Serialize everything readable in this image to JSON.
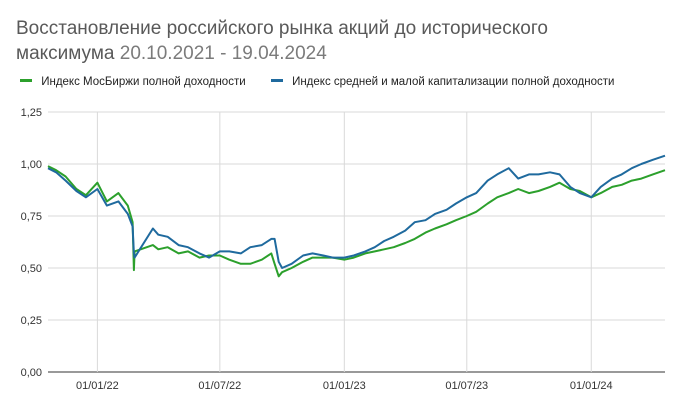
{
  "chart_data": {
    "type": "line",
    "title": "Восстановление российского рынка акций до исторического",
    "subtitle_prefix": "максимума",
    "subtitle_dates": "20.10.2021 - 19.04.2024",
    "ylim": [
      0,
      1.25
    ],
    "yticks": [
      "0,00",
      "0,25",
      "0,50",
      "0,75",
      "1,00",
      "1,25"
    ],
    "xtick_labels": [
      "01/01/22",
      "01/07/22",
      "01/01/23",
      "01/07/23",
      "01/01/24"
    ],
    "xtick_dates": [
      "2022-01-01",
      "2022-07-01",
      "2023-01-01",
      "2023-07-01",
      "2024-01-01"
    ],
    "x_range": [
      "2021-10-20",
      "2024-04-19"
    ],
    "grid": true,
    "legend_position": "top",
    "series": [
      {
        "name": "Индекс МосБиржи полной доходности",
        "color": "#2ca02c",
        "x": [
          "2021-10-20",
          "2021-11-01",
          "2021-11-15",
          "2021-12-01",
          "2021-12-15",
          "2022-01-01",
          "2022-01-15",
          "2022-02-01",
          "2022-02-15",
          "2022-02-22",
          "2022-02-24",
          "2022-02-25",
          "2022-03-24",
          "2022-04-01",
          "2022-04-15",
          "2022-05-01",
          "2022-05-15",
          "2022-06-01",
          "2022-06-15",
          "2022-07-01",
          "2022-07-15",
          "2022-08-01",
          "2022-08-15",
          "2022-09-01",
          "2022-09-15",
          "2022-09-20",
          "2022-09-26",
          "2022-10-01",
          "2022-10-15",
          "2022-11-01",
          "2022-11-15",
          "2022-12-01",
          "2022-12-15",
          "2023-01-01",
          "2023-01-15",
          "2023-02-01",
          "2023-02-15",
          "2023-03-01",
          "2023-03-15",
          "2023-04-01",
          "2023-04-15",
          "2023-05-01",
          "2023-05-15",
          "2023-06-01",
          "2023-06-15",
          "2023-07-01",
          "2023-07-15",
          "2023-08-01",
          "2023-08-15",
          "2023-09-01",
          "2023-09-15",
          "2023-10-01",
          "2023-10-15",
          "2023-11-01",
          "2023-11-15",
          "2023-12-01",
          "2023-12-15",
          "2024-01-01",
          "2024-01-15",
          "2024-02-01",
          "2024-02-15",
          "2024-03-01",
          "2024-03-15",
          "2024-04-01",
          "2024-04-19"
        ],
        "y": [
          0.99,
          0.97,
          0.94,
          0.88,
          0.85,
          0.91,
          0.82,
          0.86,
          0.8,
          0.72,
          0.49,
          0.58,
          0.61,
          0.59,
          0.6,
          0.57,
          0.58,
          0.55,
          0.56,
          0.56,
          0.54,
          0.52,
          0.52,
          0.54,
          0.57,
          0.52,
          0.46,
          0.48,
          0.5,
          0.53,
          0.55,
          0.55,
          0.55,
          0.54,
          0.55,
          0.57,
          0.58,
          0.59,
          0.6,
          0.62,
          0.64,
          0.67,
          0.69,
          0.71,
          0.73,
          0.75,
          0.77,
          0.81,
          0.84,
          0.86,
          0.88,
          0.86,
          0.87,
          0.89,
          0.91,
          0.88,
          0.87,
          0.84,
          0.86,
          0.89,
          0.9,
          0.92,
          0.93,
          0.95,
          0.97
        ]
      },
      {
        "name": "Индекс средней и малой капитализации полной доходности",
        "color": "#1f6a9e",
        "x": [
          "2021-10-20",
          "2021-11-01",
          "2021-11-15",
          "2021-12-01",
          "2021-12-15",
          "2022-01-01",
          "2022-01-15",
          "2022-02-01",
          "2022-02-15",
          "2022-02-22",
          "2022-02-24",
          "2022-02-25",
          "2022-03-24",
          "2022-04-01",
          "2022-04-15",
          "2022-05-01",
          "2022-05-15",
          "2022-06-01",
          "2022-06-15",
          "2022-07-01",
          "2022-07-15",
          "2022-08-01",
          "2022-08-15",
          "2022-09-01",
          "2022-09-15",
          "2022-09-20",
          "2022-09-26",
          "2022-10-01",
          "2022-10-15",
          "2022-11-01",
          "2022-11-15",
          "2022-12-01",
          "2022-12-15",
          "2023-01-01",
          "2023-01-15",
          "2023-02-01",
          "2023-02-15",
          "2023-03-01",
          "2023-03-15",
          "2023-04-01",
          "2023-04-15",
          "2023-05-01",
          "2023-05-15",
          "2023-06-01",
          "2023-06-15",
          "2023-07-01",
          "2023-07-15",
          "2023-08-01",
          "2023-08-15",
          "2023-09-01",
          "2023-09-15",
          "2023-10-01",
          "2023-10-15",
          "2023-11-01",
          "2023-11-15",
          "2023-12-01",
          "2023-12-15",
          "2024-01-01",
          "2024-01-15",
          "2024-02-01",
          "2024-02-15",
          "2024-03-01",
          "2024-03-15",
          "2024-04-01",
          "2024-04-19"
        ],
        "y": [
          0.98,
          0.96,
          0.92,
          0.87,
          0.84,
          0.88,
          0.8,
          0.82,
          0.76,
          0.7,
          0.57,
          0.55,
          0.69,
          0.66,
          0.65,
          0.61,
          0.6,
          0.57,
          0.55,
          0.58,
          0.58,
          0.57,
          0.6,
          0.61,
          0.64,
          0.64,
          0.53,
          0.5,
          0.52,
          0.56,
          0.57,
          0.56,
          0.55,
          0.55,
          0.56,
          0.58,
          0.6,
          0.63,
          0.65,
          0.68,
          0.72,
          0.73,
          0.76,
          0.78,
          0.81,
          0.84,
          0.86,
          0.92,
          0.95,
          0.98,
          0.93,
          0.95,
          0.95,
          0.96,
          0.95,
          0.89,
          0.86,
          0.84,
          0.89,
          0.93,
          0.95,
          0.98,
          1.0,
          1.02,
          1.04
        ]
      }
    ]
  }
}
